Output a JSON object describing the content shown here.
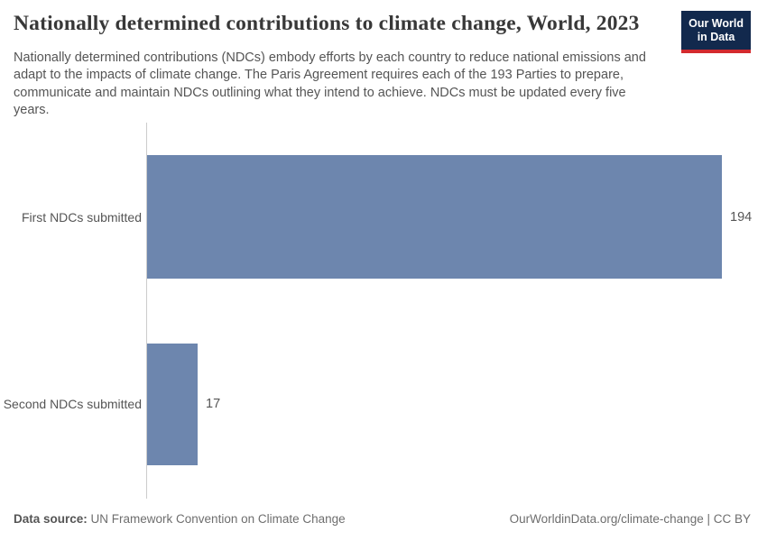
{
  "header": {
    "title": "Nationally determined contributions to climate change, World, 2023",
    "subtitle_lines": [
      "Nationally determined contributions (NDCs) embody efforts by each country to reduce national emissions and",
      "adapt to the impacts of climate change. The Paris Agreement requires each of the 193 Parties to prepare,",
      "communicate and maintain NDCs outlining what they intend to achieve. NDCs must be updated every five",
      "years."
    ],
    "logo": {
      "line1": "Our World",
      "line2": "in Data"
    }
  },
  "chart_data": {
    "type": "bar",
    "orientation": "horizontal",
    "title": "Nationally determined contributions to climate change, World, 2023",
    "categories": [
      "First NDCs submitted",
      "Second NDCs submitted"
    ],
    "values": [
      194,
      17
    ],
    "xlabel": "",
    "ylabel": "",
    "xlim": [
      0,
      194
    ],
    "grid": false,
    "legend": false,
    "bar_color": "#6d86ae",
    "axis_color": "#cccccc",
    "value_labels_shown": true
  },
  "footer": {
    "source_label": "Data source:",
    "source_value": " UN Framework Convention on Climate Change",
    "right_url": "OurWorldinData.org/climate-change",
    "separator": " | ",
    "license": "CC BY"
  },
  "colors": {
    "bar": "#6d86ae",
    "logo_bg": "#12294d",
    "logo_underline": "#d32a2e",
    "title_text": "#383838",
    "body_text": "#555555"
  }
}
